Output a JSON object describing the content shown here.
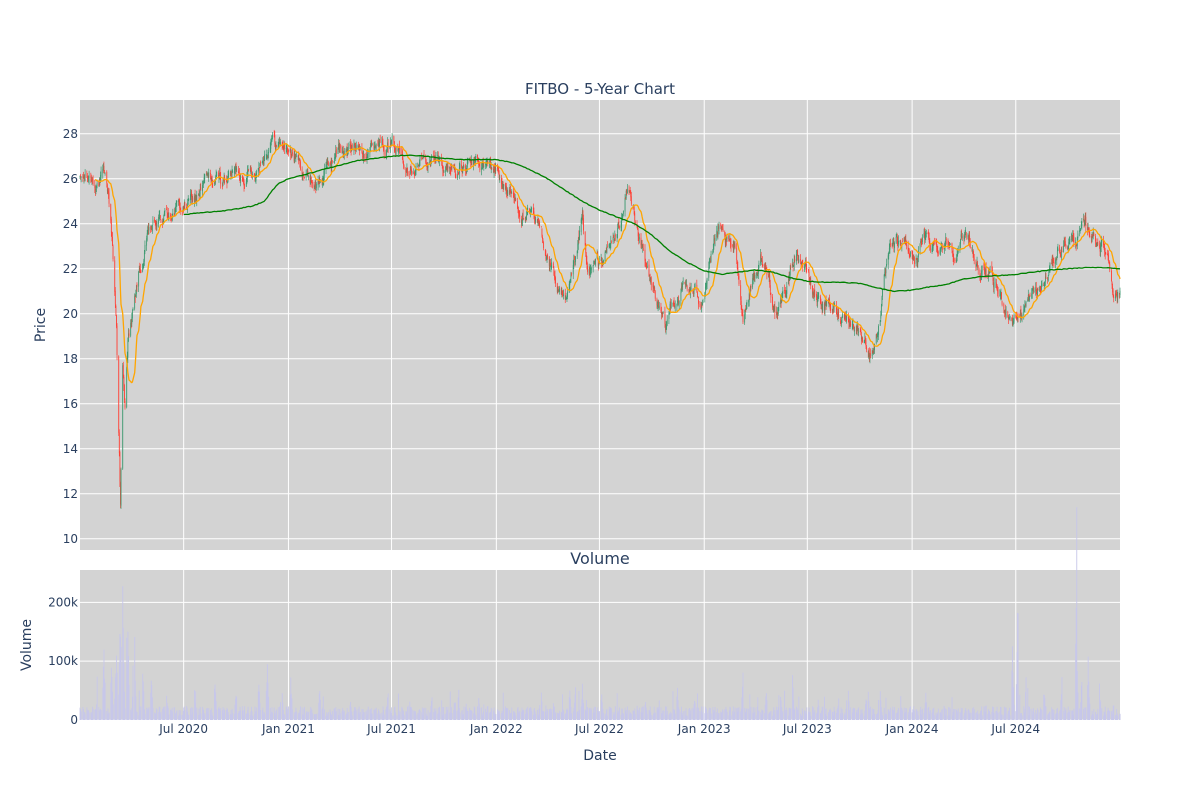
{
  "chart_data": [
    {
      "type": "candlestick",
      "title": "FITBO - 5-Year Chart",
      "ylabel": "Price",
      "ylim": [
        9.5,
        29.5
      ],
      "yticks": [
        10,
        12,
        14,
        16,
        18,
        20,
        22,
        24,
        26,
        28
      ],
      "grid": true,
      "colors": {
        "plot_bg": "#d3d3d3",
        "grid": "#ffffff",
        "up": "#3d9970",
        "down": "#ff4136",
        "ma_short": "#ffa500",
        "ma_long": "#008000"
      },
      "x_range": [
        "2020-01-01",
        "2024-12-31"
      ],
      "price_path": [
        [
          "2020-01-01",
          25.9
        ],
        [
          "2020-01-20",
          26.0
        ],
        [
          "2020-02-10",
          26.0
        ],
        [
          "2020-02-20",
          25.2
        ],
        [
          "2020-02-27",
          23.0
        ],
        [
          "2020-03-05",
          19.5
        ],
        [
          "2020-03-10",
          14.0
        ],
        [
          "2020-03-12",
          11.5
        ],
        [
          "2020-03-16",
          17.5
        ],
        [
          "2020-03-20",
          15.5
        ],
        [
          "2020-03-25",
          19.0
        ],
        [
          "2020-04-05",
          20.2
        ],
        [
          "2020-04-12",
          21.5
        ],
        [
          "2020-04-20",
          22.2
        ],
        [
          "2020-05-01",
          23.5
        ],
        [
          "2020-05-20",
          24.0
        ],
        [
          "2020-06-10",
          24.6
        ],
        [
          "2020-07-01",
          24.7
        ],
        [
          "2020-07-20",
          25.0
        ],
        [
          "2020-08-10",
          25.9
        ],
        [
          "2020-09-01",
          25.8
        ],
        [
          "2020-09-20",
          26.2
        ],
        [
          "2020-10-10",
          26.3
        ],
        [
          "2020-11-01",
          26.4
        ],
        [
          "2020-11-20",
          27.3
        ],
        [
          "2020-12-01",
          27.9
        ],
        [
          "2020-12-15",
          27.5
        ],
        [
          "2021-01-01",
          27.4
        ],
        [
          "2021-01-15",
          26.8
        ],
        [
          "2021-02-01",
          26.2
        ],
        [
          "2021-02-20",
          25.8
        ],
        [
          "2021-03-10",
          26.4
        ],
        [
          "2021-04-01",
          27.4
        ],
        [
          "2021-04-20",
          27.2
        ],
        [
          "2021-05-10",
          27.5
        ],
        [
          "2021-06-01",
          27.6
        ],
        [
          "2021-06-15",
          28.0
        ],
        [
          "2021-07-01",
          27.5
        ],
        [
          "2021-08-01",
          27.0
        ],
        [
          "2021-09-01",
          26.8
        ],
        [
          "2021-10-01",
          26.6
        ],
        [
          "2021-11-01",
          26.4
        ],
        [
          "2021-12-01",
          26.5
        ],
        [
          "2022-01-01",
          26.4
        ],
        [
          "2022-01-20",
          25.5
        ],
        [
          "2022-02-10",
          24.7
        ],
        [
          "2022-03-01",
          24.2
        ],
        [
          "2022-03-20",
          23.5
        ],
        [
          "2022-04-10",
          22.0
        ],
        [
          "2022-04-25",
          20.5
        ],
        [
          "2022-05-05",
          20.1
        ],
        [
          "2022-05-20",
          22.0
        ],
        [
          "2022-06-01",
          24.0
        ],
        [
          "2022-06-10",
          21.5
        ],
        [
          "2022-06-25",
          22.0
        ],
        [
          "2022-07-10",
          22.5
        ],
        [
          "2022-08-01",
          23.5
        ],
        [
          "2022-08-20",
          25.5
        ],
        [
          "2022-09-05",
          24.0
        ],
        [
          "2022-09-20",
          22.0
        ],
        [
          "2022-10-10",
          20.5
        ],
        [
          "2022-10-25",
          19.0
        ],
        [
          "2022-11-05",
          20.5
        ],
        [
          "2022-11-25",
          21.2
        ],
        [
          "2022-12-10",
          21.0
        ],
        [
          "2022-12-25",
          20.5
        ],
        [
          "2023-01-10",
          22.5
        ],
        [
          "2023-01-25",
          23.5
        ],
        [
          "2023-02-10",
          22.8
        ],
        [
          "2023-02-25",
          22.5
        ],
        [
          "2023-03-10",
          20.0
        ],
        [
          "2023-03-25",
          21.5
        ],
        [
          "2023-04-10",
          22.5
        ],
        [
          "2023-04-25",
          21.5
        ],
        [
          "2023-05-10",
          19.8
        ],
        [
          "2023-05-25",
          21.0
        ],
        [
          "2023-06-10",
          22.9
        ],
        [
          "2023-06-25",
          22.3
        ],
        [
          "2023-07-10",
          21.0
        ],
        [
          "2023-07-25",
          20.6
        ],
        [
          "2023-08-10",
          20.2
        ],
        [
          "2023-08-25",
          19.9
        ],
        [
          "2023-09-10",
          20.1
        ],
        [
          "2023-09-25",
          19.5
        ],
        [
          "2023-10-10",
          18.8
        ],
        [
          "2023-10-25",
          18.4
        ],
        [
          "2023-11-05",
          20.0
        ],
        [
          "2023-11-20",
          22.3
        ],
        [
          "2023-12-05",
          22.8
        ],
        [
          "2023-12-20",
          23.0
        ],
        [
          "2024-01-05",
          22.4
        ],
        [
          "2024-01-20",
          23.2
        ],
        [
          "2024-02-10",
          23.0
        ],
        [
          "2024-03-01",
          23.3
        ],
        [
          "2024-03-20",
          23.0
        ],
        [
          "2024-04-10",
          23.5
        ],
        [
          "2024-04-25",
          22.0
        ],
        [
          "2024-05-10",
          21.7
        ],
        [
          "2024-05-25",
          21.0
        ],
        [
          "2024-06-10",
          20.4
        ],
        [
          "2024-06-25",
          19.9
        ],
        [
          "2024-07-10",
          20.1
        ],
        [
          "2024-07-25",
          20.6
        ],
        [
          "2024-08-10",
          20.9
        ],
        [
          "2024-08-25",
          21.5
        ],
        [
          "2024-09-10",
          22.7
        ],
        [
          "2024-09-25",
          23.2
        ],
        [
          "2024-10-10",
          23.3
        ],
        [
          "2024-10-25",
          23.6
        ],
        [
          "2024-11-10",
          23.5
        ],
        [
          "2024-11-25",
          23.3
        ],
        [
          "2024-12-10",
          22.6
        ],
        [
          "2024-12-20",
          21.2
        ],
        [
          "2024-12-31",
          21.0
        ]
      ],
      "ma_long_path": [
        [
          "2020-07-01",
          24.4
        ],
        [
          "2020-08-01",
          24.5
        ],
        [
          "2020-09-01",
          24.55
        ],
        [
          "2020-10-01",
          24.65
        ],
        [
          "2020-11-01",
          24.8
        ],
        [
          "2020-11-20",
          25.0
        ],
        [
          "2020-12-01",
          25.4
        ],
        [
          "2020-12-15",
          25.8
        ],
        [
          "2021-01-01",
          26.0
        ],
        [
          "2021-02-01",
          26.2
        ],
        [
          "2021-03-01",
          26.4
        ],
        [
          "2021-04-01",
          26.6
        ],
        [
          "2021-05-01",
          26.8
        ],
        [
          "2021-06-01",
          26.9
        ],
        [
          "2021-07-01",
          27.0
        ],
        [
          "2021-08-01",
          27.05
        ],
        [
          "2021-09-01",
          27.0
        ],
        [
          "2021-10-01",
          26.9
        ],
        [
          "2021-11-01",
          26.85
        ],
        [
          "2021-12-01",
          26.85
        ],
        [
          "2022-01-01",
          26.85
        ],
        [
          "2022-02-01",
          26.7
        ],
        [
          "2022-03-01",
          26.4
        ],
        [
          "2022-04-01",
          26.0
        ],
        [
          "2022-05-01",
          25.5
        ],
        [
          "2022-06-01",
          25.0
        ],
        [
          "2022-07-01",
          24.6
        ],
        [
          "2022-08-01",
          24.3
        ],
        [
          "2022-09-01",
          24.0
        ],
        [
          "2022-10-01",
          23.5
        ],
        [
          "2022-11-01",
          22.8
        ],
        [
          "2022-12-01",
          22.3
        ],
        [
          "2023-01-01",
          21.9
        ],
        [
          "2023-02-01",
          21.75
        ],
        [
          "2023-03-01",
          21.85
        ],
        [
          "2023-04-01",
          21.95
        ],
        [
          "2023-05-01",
          21.85
        ],
        [
          "2023-06-01",
          21.6
        ],
        [
          "2023-07-01",
          21.45
        ],
        [
          "2023-08-01",
          21.4
        ],
        [
          "2023-09-01",
          21.4
        ],
        [
          "2023-10-01",
          21.35
        ],
        [
          "2023-11-01",
          21.15
        ],
        [
          "2023-12-01",
          21.0
        ],
        [
          "2024-01-01",
          21.05
        ],
        [
          "2024-02-01",
          21.2
        ],
        [
          "2024-03-01",
          21.3
        ],
        [
          "2024-04-01",
          21.55
        ],
        [
          "2024-05-01",
          21.65
        ],
        [
          "2024-06-01",
          21.7
        ],
        [
          "2024-07-01",
          21.75
        ],
        [
          "2024-08-01",
          21.85
        ],
        [
          "2024-09-01",
          21.95
        ],
        [
          "2024-10-01",
          22.0
        ],
        [
          "2024-11-01",
          22.05
        ],
        [
          "2024-12-01",
          22.05
        ],
        [
          "2024-12-31",
          22.0
        ]
      ]
    },
    {
      "type": "bar",
      "title": "Volume",
      "ylabel": "Volume",
      "xlabel": "Date",
      "ylim": [
        0,
        255000
      ],
      "yticks": [
        0,
        100000,
        200000
      ],
      "ytick_labels": [
        "0",
        "100k",
        "200k"
      ],
      "x_ticks": [
        "2020-07-01",
        "2021-01-01",
        "2021-07-01",
        "2022-01-01",
        "2022-07-01",
        "2023-01-01",
        "2023-07-01",
        "2024-01-01",
        "2024-07-01"
      ],
      "x_tick_labels": [
        "Jul 2020",
        "Jan 2021",
        "Jul 2021",
        "Jan 2022",
        "Jul 2022",
        "Jan 2023",
        "Jul 2023",
        "Jan 2024",
        "Jul 2024"
      ],
      "grid": true,
      "colors": {
        "plot_bg": "#d3d3d3",
        "grid": "#ffffff",
        "bar": "#c7c7ea"
      },
      "baseline_volume": 18000,
      "spikes": [
        [
          "2020-02-01",
          60000
        ],
        [
          "2020-02-12",
          130000
        ],
        [
          "2020-02-25",
          110000
        ],
        [
          "2020-03-05",
          150000
        ],
        [
          "2020-03-12",
          200000
        ],
        [
          "2020-03-16",
          240000
        ],
        [
          "2020-03-25",
          170000
        ],
        [
          "2020-04-05",
          190000
        ],
        [
          "2020-04-20",
          100000
        ],
        [
          "2020-05-05",
          80000
        ],
        [
          "2020-06-01",
          55000
        ],
        [
          "2020-07-20",
          55000
        ],
        [
          "2020-08-25",
          75000
        ],
        [
          "2020-10-01",
          55000
        ],
        [
          "2020-11-10",
          75000
        ],
        [
          "2020-11-25",
          105000
        ],
        [
          "2020-12-20",
          70000
        ],
        [
          "2021-01-05",
          80000
        ],
        [
          "2021-02-25",
          60000
        ],
        [
          "2021-04-20",
          35000
        ],
        [
          "2021-06-25",
          55000
        ],
        [
          "2021-08-01",
          50000
        ],
        [
          "2021-09-10",
          55000
        ],
        [
          "2021-10-20",
          40000
        ],
        [
          "2022-03-20",
          65000
        ],
        [
          "2022-04-10",
          50000
        ],
        [
          "2022-05-10",
          55000
        ],
        [
          "2022-05-20",
          75000
        ],
        [
          "2022-06-01",
          65000
        ],
        [
          "2022-07-05",
          50000
        ],
        [
          "2022-09-20",
          40000
        ],
        [
          "2022-10-15",
          50000
        ],
        [
          "2022-11-15",
          55000
        ],
        [
          "2022-12-15",
          45000
        ],
        [
          "2023-03-10",
          100000
        ],
        [
          "2023-04-20",
          60000
        ],
        [
          "2023-05-15",
          55000
        ],
        [
          "2023-06-05",
          80000
        ],
        [
          "2023-07-20",
          35000
        ],
        [
          "2023-08-25",
          40000
        ],
        [
          "2023-09-10",
          70000
        ],
        [
          "2023-10-15",
          75000
        ],
        [
          "2023-11-05",
          80000
        ],
        [
          "2023-11-25",
          40000
        ],
        [
          "2024-01-25",
          55000
        ],
        [
          "2024-02-25",
          40000
        ],
        [
          "2024-05-10",
          25000
        ],
        [
          "2024-06-25",
          130000
        ],
        [
          "2024-07-05",
          245000
        ],
        [
          "2024-07-20",
          110000
        ],
        [
          "2024-08-20",
          60000
        ],
        [
          "2024-09-20",
          75000
        ],
        [
          "2024-10-15",
          220000
        ],
        [
          "2024-10-25",
          85000
        ],
        [
          "2024-11-05",
          110000
        ],
        [
          "2024-11-25",
          65000
        ],
        [
          "2024-12-20",
          35000
        ]
      ]
    }
  ]
}
